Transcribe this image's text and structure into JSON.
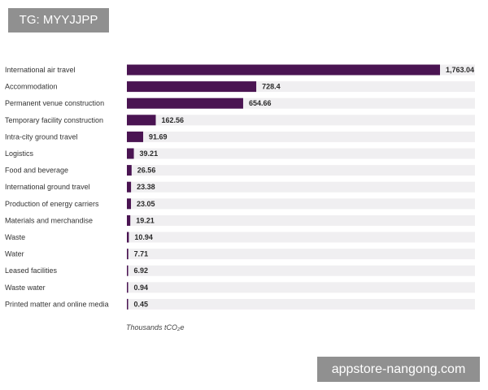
{
  "watermark_top": "TG: MYYJJPP",
  "watermark_bottom": "appstore-nangong.com",
  "colors": {
    "bar": "#4a1452",
    "track": "#f0eff1"
  },
  "chart_data": {
    "type": "bar",
    "orientation": "horizontal",
    "categories": [
      "International air travel",
      "Accommodation",
      "Permanent venue construction",
      "Temporary facility construction",
      "Intra-city ground travel",
      "Logistics",
      "Food and beverage",
      "International ground travel",
      "Production of energy carriers",
      "Materials and merchandise",
      "Waste",
      "Water",
      "Leased facilities",
      "Waste water",
      "Printed matter and online media"
    ],
    "values": [
      1763.04,
      728.4,
      654.66,
      162.56,
      91.69,
      39.21,
      26.56,
      23.38,
      23.05,
      19.21,
      10.94,
      7.71,
      6.92,
      0.94,
      0.45
    ],
    "value_labels": [
      "1,763.04",
      "728.4",
      "654.66",
      "162.56",
      "91.69",
      "39.21",
      "26.56",
      "23.38",
      "23.05",
      "19.21",
      "10.94",
      "7.71",
      "6.92",
      "0.94",
      "0.45"
    ],
    "title": "",
    "xlabel": "Thousands tCO₂e",
    "ylabel": "",
    "xlim": [
      0,
      1763.04
    ],
    "grid": false,
    "legend": "none"
  }
}
